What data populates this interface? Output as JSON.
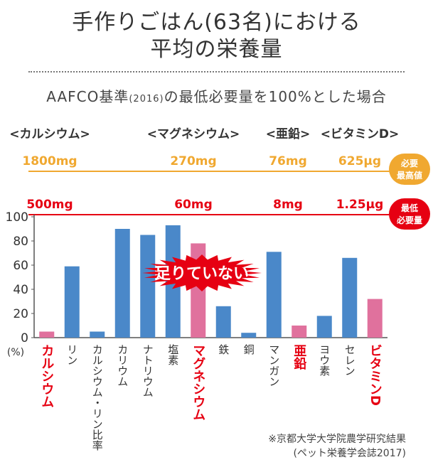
{
  "header": {
    "title_line1": "手作りごはん(63名)における",
    "title_line2": "平均の栄養量",
    "subtitle_main": "AAFCO基準",
    "subtitle_year": "(2016)",
    "subtitle_rest": "の最低必要量を100%とした場合"
  },
  "nutrients": [
    {
      "name": "<カルシウム>",
      "max": "1800mg",
      "min": "500mg"
    },
    {
      "name": "<マグネシウム>",
      "max": "270mg",
      "min": "60mg"
    },
    {
      "name": "<亜鉛>",
      "max": "76mg",
      "min": "8mg"
    },
    {
      "name": "<ビタミンD>",
      "max": "625μg",
      "min": "1.25μg"
    }
  ],
  "legend": {
    "max_label": [
      "必要",
      "最高値"
    ],
    "min_label": [
      "最低",
      "必要量"
    ]
  },
  "badge": "足りていない",
  "colors": {
    "bar_blue": "#4a88c9",
    "bar_pink": "#e0719d",
    "max_line": "#f0a830",
    "min_line": "#e60012",
    "label_red": "#e60012"
  },
  "chart_data": {
    "type": "bar",
    "categories": [
      "カルシウム",
      "リン",
      "カルシウム・リン比率",
      "カリウム",
      "ナトリウム",
      "塩素",
      "マグネシウム",
      "鉄",
      "銅",
      "マンガン",
      "亜鉛",
      "ヨウ素",
      "セレン",
      "ビタミンD"
    ],
    "values": [
      5,
      59,
      5,
      90,
      85,
      93,
      78,
      26,
      4,
      71,
      10,
      18,
      66,
      32
    ],
    "highlighted": [
      true,
      false,
      false,
      false,
      false,
      false,
      true,
      false,
      false,
      false,
      true,
      false,
      false,
      true
    ],
    "yticks": [
      0,
      20,
      40,
      60,
      80,
      100
    ],
    "ylim": [
      0,
      100
    ],
    "yunit": "(%)"
  },
  "notes": [
    "※京都大学大学院農学研究結果",
    "(ペット栄養学会誌2017)"
  ]
}
